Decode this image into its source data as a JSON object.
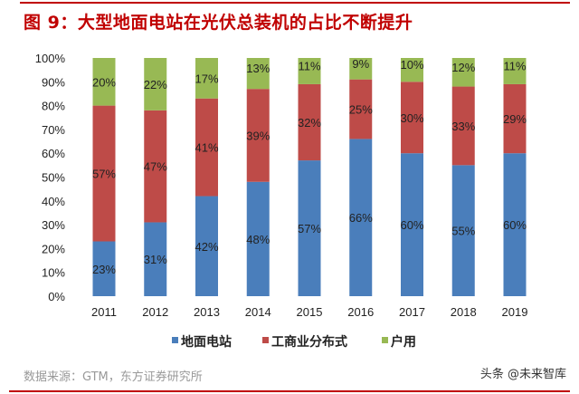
{
  "title": "图 9：大型地面电站在光伏总装机的占比不断提升",
  "source": "数据来源：GTM，东方证券研究所",
  "watermark": "头条 @未来智库",
  "chart_data": {
    "type": "bar",
    "stacked": true,
    "categories": [
      "2011",
      "2012",
      "2013",
      "2014",
      "2015",
      "2016",
      "2017",
      "2018",
      "2019"
    ],
    "series": [
      {
        "name": "地面电站",
        "color": "#4a7ebb",
        "values": [
          23,
          31,
          42,
          48,
          57,
          66,
          60,
          55,
          60
        ]
      },
      {
        "name": "工商业分布式",
        "color": "#be4b48",
        "values": [
          57,
          47,
          41,
          39,
          32,
          25,
          30,
          33,
          29
        ]
      },
      {
        "name": "户用",
        "color": "#98b954",
        "values": [
          20,
          22,
          17,
          13,
          11,
          9,
          10,
          12,
          11
        ]
      }
    ],
    "ylim": [
      0,
      100
    ],
    "yticks": [
      "0%",
      "10%",
      "20%",
      "30%",
      "40%",
      "50%",
      "60%",
      "70%",
      "80%",
      "90%",
      "100%"
    ],
    "data_label_suffix": "%",
    "grid": false,
    "legend": "bottom"
  }
}
